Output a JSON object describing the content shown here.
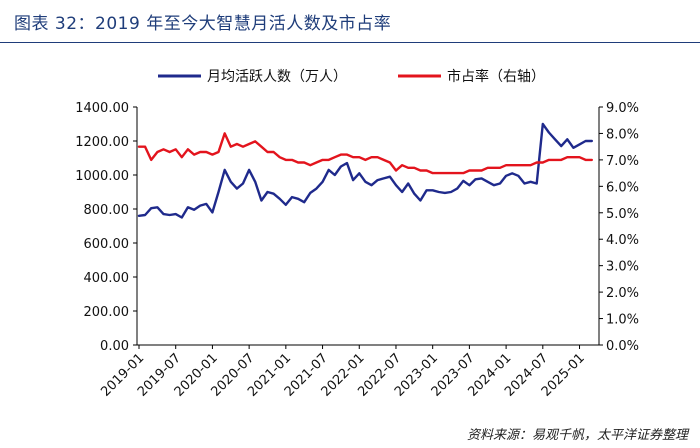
{
  "figure": {
    "title": "图表 32：2019 年至今大智慧月活人数及市占率",
    "source": "资料来源：易观千帆，太平洋证券整理"
  },
  "colors": {
    "left_series": "#1f2a8c",
    "right_series": "#e3141d",
    "axis": "#000000",
    "title": "#1f3d7a"
  },
  "chart_data": {
    "type": "line",
    "legend_position": "top",
    "grid": false,
    "x_ticks": [
      "2019-01",
      "2019-07",
      "2020-01",
      "2020-07",
      "2021-01",
      "2021-07",
      "2022-01",
      "2022-07",
      "2023-01",
      "2023-07",
      "2024-01",
      "2024-07",
      "2025-01"
    ],
    "x": [
      "2019-01",
      "2019-02",
      "2019-03",
      "2019-04",
      "2019-05",
      "2019-06",
      "2019-07",
      "2019-08",
      "2019-09",
      "2019-10",
      "2019-11",
      "2019-12",
      "2020-01",
      "2020-02",
      "2020-03",
      "2020-04",
      "2020-05",
      "2020-06",
      "2020-07",
      "2020-08",
      "2020-09",
      "2020-10",
      "2020-11",
      "2020-12",
      "2021-01",
      "2021-02",
      "2021-03",
      "2021-04",
      "2021-05",
      "2021-06",
      "2021-07",
      "2021-08",
      "2021-09",
      "2021-10",
      "2021-11",
      "2021-12",
      "2022-01",
      "2022-02",
      "2022-03",
      "2022-04",
      "2022-05",
      "2022-06",
      "2022-07",
      "2022-08",
      "2022-09",
      "2022-10",
      "2022-11",
      "2022-12",
      "2023-01",
      "2023-02",
      "2023-03",
      "2023-04",
      "2023-05",
      "2023-06",
      "2023-07",
      "2023-08",
      "2023-09",
      "2023-10",
      "2023-11",
      "2023-12",
      "2024-01",
      "2024-02",
      "2024-03",
      "2024-04",
      "2024-05",
      "2024-06",
      "2024-07",
      "2024-08",
      "2024-09",
      "2024-10",
      "2024-11",
      "2024-12",
      "2025-01",
      "2025-02",
      "2025-03"
    ],
    "y_left": {
      "label": "",
      "ticks": [
        "0.00",
        "200.00",
        "400.00",
        "600.00",
        "800.00",
        "1000.00",
        "1200.00",
        "1400.00"
      ],
      "min": 0,
      "max": 1400
    },
    "y_right": {
      "label": "",
      "ticks": [
        "0.0%",
        "1.0%",
        "2.0%",
        "3.0%",
        "4.0%",
        "5.0%",
        "6.0%",
        "7.0%",
        "8.0%",
        "9.0%"
      ],
      "min": 0,
      "max": 9
    },
    "series": [
      {
        "name": "月均活跃人数（万人）",
        "axis": "left",
        "values": [
          760,
          765,
          805,
          810,
          770,
          765,
          770,
          750,
          810,
          795,
          820,
          830,
          780,
          900,
          1030,
          960,
          920,
          950,
          1030,
          960,
          850,
          900,
          890,
          860,
          825,
          870,
          860,
          840,
          895,
          920,
          960,
          1030,
          1000,
          1050,
          1070,
          970,
          1010,
          960,
          940,
          970,
          980,
          990,
          940,
          900,
          950,
          890,
          850,
          910,
          910,
          900,
          895,
          900,
          920,
          965,
          940,
          975,
          980,
          960,
          940,
          950,
          995,
          1010,
          995,
          950,
          960,
          950,
          1300,
          1250,
          1210,
          1170,
          1210,
          1160,
          1180,
          1200,
          1200
        ],
        "trim": 72
      },
      {
        "name": "市占率（右轴）",
        "axis": "right",
        "values": [
          7.5,
          7.5,
          7.0,
          7.3,
          7.4,
          7.3,
          7.4,
          7.1,
          7.4,
          7.2,
          7.3,
          7.3,
          7.2,
          7.3,
          8.0,
          7.5,
          7.6,
          7.5,
          7.6,
          7.7,
          7.5,
          7.3,
          7.3,
          7.1,
          7.0,
          7.0,
          6.9,
          6.9,
          6.8,
          6.9,
          7.0,
          7.0,
          7.1,
          7.2,
          7.2,
          7.1,
          7.1,
          7.0,
          7.1,
          7.1,
          7.0,
          6.9,
          6.6,
          6.8,
          6.7,
          6.7,
          6.6,
          6.6,
          6.5,
          6.5,
          6.5,
          6.5,
          6.5,
          6.5,
          6.6,
          6.6,
          6.6,
          6.7,
          6.7,
          6.7,
          6.8,
          6.8,
          6.8,
          6.8,
          6.8,
          6.9,
          6.9,
          7.0,
          7.0,
          7.0,
          7.1,
          7.1,
          7.1,
          7.0,
          7.0
        ]
      }
    ]
  }
}
